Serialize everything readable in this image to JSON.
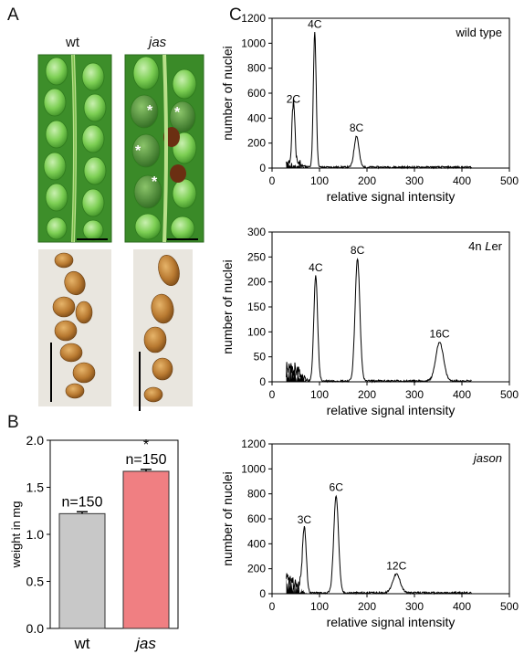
{
  "panel_a": {
    "letter": "A",
    "wt_label": "wt",
    "jas_label": "jas"
  },
  "panel_b": {
    "letter": "B"
  },
  "panel_c": {
    "letter": "C"
  },
  "chart_data": [
    {
      "type": "bar",
      "categories": [
        "wt",
        "jas"
      ],
      "values": [
        1.22,
        1.67
      ],
      "errors": [
        0.02,
        0.02
      ],
      "bar_labels": [
        "n=150",
        "n=150"
      ],
      "significance": [
        "",
        "*"
      ],
      "colors": [
        "#c8c8c8",
        "#f07f82"
      ],
      "ylabel": "weight in mg",
      "ylim": [
        0,
        2.0
      ],
      "yticks": [
        "0.0",
        "0.5",
        "1.0",
        "1.5",
        "2.0"
      ]
    },
    {
      "type": "line",
      "title": "wild type",
      "xlabel": "relative signal intensity",
      "ylabel": "number of nuclei",
      "xlim": [
        0,
        500
      ],
      "ylim": [
        0,
        1200
      ],
      "xticks": [
        0,
        100,
        200,
        300,
        400,
        500
      ],
      "yticks": [
        0,
        200,
        400,
        600,
        800,
        1000,
        1200
      ],
      "peaks": [
        {
          "label": "2C",
          "x": 45,
          "height": 480,
          "width": 3
        },
        {
          "label": "4C",
          "x": 90,
          "height": 1080,
          "width": 3
        },
        {
          "label": "8C",
          "x": 178,
          "height": 250,
          "width": 5
        }
      ]
    },
    {
      "type": "line",
      "title": "4n Ler",
      "xlabel": "relative signal intensity",
      "ylabel": "number of nuclei",
      "xlim": [
        0,
        500
      ],
      "ylim": [
        0,
        300
      ],
      "xticks": [
        0,
        100,
        200,
        300,
        400,
        500
      ],
      "yticks": [
        0,
        50,
        100,
        150,
        200,
        250,
        300
      ],
      "peaks": [
        {
          "label": "4C",
          "x": 92,
          "height": 210,
          "width": 4
        },
        {
          "label": "8C",
          "x": 180,
          "height": 245,
          "width": 5
        },
        {
          "label": "16C",
          "x": 353,
          "height": 78,
          "width": 8
        }
      ]
    },
    {
      "type": "line",
      "title": "jason",
      "xlabel": "relative signal intensity",
      "ylabel": "number of nuclei",
      "xlim": [
        0,
        500
      ],
      "ylim": [
        0,
        1200
      ],
      "xticks": [
        0,
        100,
        200,
        300,
        400,
        500
      ],
      "yticks": [
        0,
        200,
        400,
        600,
        800,
        1000,
        1200
      ],
      "peaks": [
        {
          "label": "3C",
          "x": 68,
          "height": 520,
          "width": 4
        },
        {
          "label": "6C",
          "x": 135,
          "height": 780,
          "width": 5
        },
        {
          "label": "12C",
          "x": 262,
          "height": 150,
          "width": 8
        }
      ]
    }
  ]
}
